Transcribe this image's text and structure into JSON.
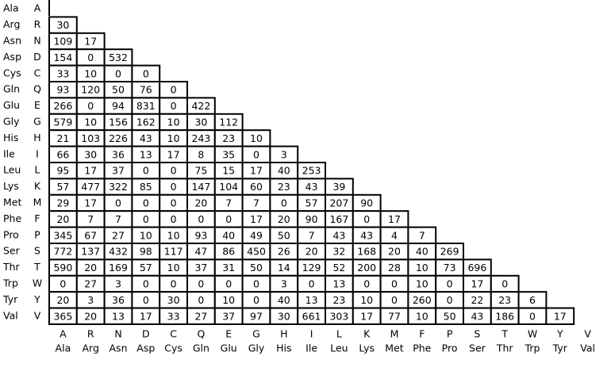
{
  "rows": [
    {
      "name": "Ala",
      "code": "A",
      "values": []
    },
    {
      "name": "Arg",
      "code": "R",
      "values": [
        30
      ]
    },
    {
      "name": "Asn",
      "code": "N",
      "values": [
        109,
        17
      ]
    },
    {
      "name": "Asp",
      "code": "D",
      "values": [
        154,
        0,
        532
      ]
    },
    {
      "name": "Cys",
      "code": "C",
      "values": [
        33,
        10,
        0,
        0
      ]
    },
    {
      "name": "Gln",
      "code": "Q",
      "values": [
        93,
        120,
        50,
        76,
        0
      ]
    },
    {
      "name": "Glu",
      "code": "E",
      "values": [
        266,
        0,
        94,
        831,
        0,
        422
      ]
    },
    {
      "name": "Gly",
      "code": "G",
      "values": [
        579,
        10,
        156,
        162,
        10,
        30,
        112
      ]
    },
    {
      "name": "His",
      "code": "H",
      "values": [
        21,
        103,
        226,
        43,
        10,
        243,
        23,
        10
      ]
    },
    {
      "name": "Ile",
      "code": "I",
      "values": [
        66,
        30,
        36,
        13,
        17,
        8,
        35,
        0,
        3
      ]
    },
    {
      "name": "Leu",
      "code": "L",
      "values": [
        95,
        17,
        37,
        0,
        0,
        75,
        15,
        17,
        40,
        253
      ]
    },
    {
      "name": "Lys",
      "code": "K",
      "values": [
        57,
        477,
        322,
        85,
        0,
        147,
        104,
        60,
        23,
        43,
        39
      ]
    },
    {
      "name": "Met",
      "code": "M",
      "values": [
        29,
        17,
        0,
        0,
        0,
        20,
        7,
        7,
        0,
        57,
        207,
        90
      ]
    },
    {
      "name": "Phe",
      "code": "F",
      "values": [
        20,
        7,
        7,
        0,
        0,
        0,
        0,
        17,
        20,
        90,
        167,
        0,
        17
      ]
    },
    {
      "name": "Pro",
      "code": "P",
      "values": [
        345,
        67,
        27,
        10,
        10,
        93,
        40,
        49,
        50,
        7,
        43,
        43,
        4,
        7
      ]
    },
    {
      "name": "Ser",
      "code": "S",
      "values": [
        772,
        137,
        432,
        98,
        117,
        47,
        86,
        450,
        26,
        20,
        32,
        168,
        20,
        40,
        269
      ]
    },
    {
      "name": "Thr",
      "code": "T",
      "values": [
        590,
        20,
        169,
        57,
        10,
        37,
        31,
        50,
        14,
        129,
        52,
        200,
        28,
        10,
        73,
        696
      ]
    },
    {
      "name": "Trp",
      "code": "W",
      "values": [
        0,
        27,
        3,
        0,
        0,
        0,
        0,
        0,
        3,
        0,
        13,
        0,
        0,
        10,
        0,
        17,
        0
      ]
    },
    {
      "name": "Tyr",
      "code": "Y",
      "values": [
        20,
        3,
        36,
        0,
        30,
        0,
        10,
        0,
        40,
        13,
        23,
        10,
        0,
        260,
        0,
        22,
        23,
        6
      ]
    },
    {
      "name": "Val",
      "code": "V",
      "values": [
        365,
        20,
        13,
        17,
        33,
        27,
        37,
        97,
        30,
        661,
        303,
        17,
        77,
        10,
        50,
        43,
        186,
        0,
        17
      ]
    }
  ],
  "columns": [
    {
      "code": "A",
      "name": "Ala"
    },
    {
      "code": "R",
      "name": "Arg"
    },
    {
      "code": "N",
      "name": "Asn"
    },
    {
      "code": "D",
      "name": "Asp"
    },
    {
      "code": "C",
      "name": "Cys"
    },
    {
      "code": "Q",
      "name": "Gln"
    },
    {
      "code": "E",
      "name": "Glu"
    },
    {
      "code": "G",
      "name": "Gly"
    },
    {
      "code": "H",
      "name": "His"
    },
    {
      "code": "I",
      "name": "Ile"
    },
    {
      "code": "L",
      "name": "Leu"
    },
    {
      "code": "K",
      "name": "Lys"
    },
    {
      "code": "M",
      "name": "Met"
    },
    {
      "code": "F",
      "name": "Phe"
    },
    {
      "code": "P",
      "name": "Pro"
    },
    {
      "code": "S",
      "name": "Ser"
    },
    {
      "code": "T",
      "name": "Thr"
    },
    {
      "code": "W",
      "name": "Trp"
    },
    {
      "code": "Y",
      "name": "Tyr"
    },
    {
      "code": "V",
      "name": "Val"
    }
  ]
}
